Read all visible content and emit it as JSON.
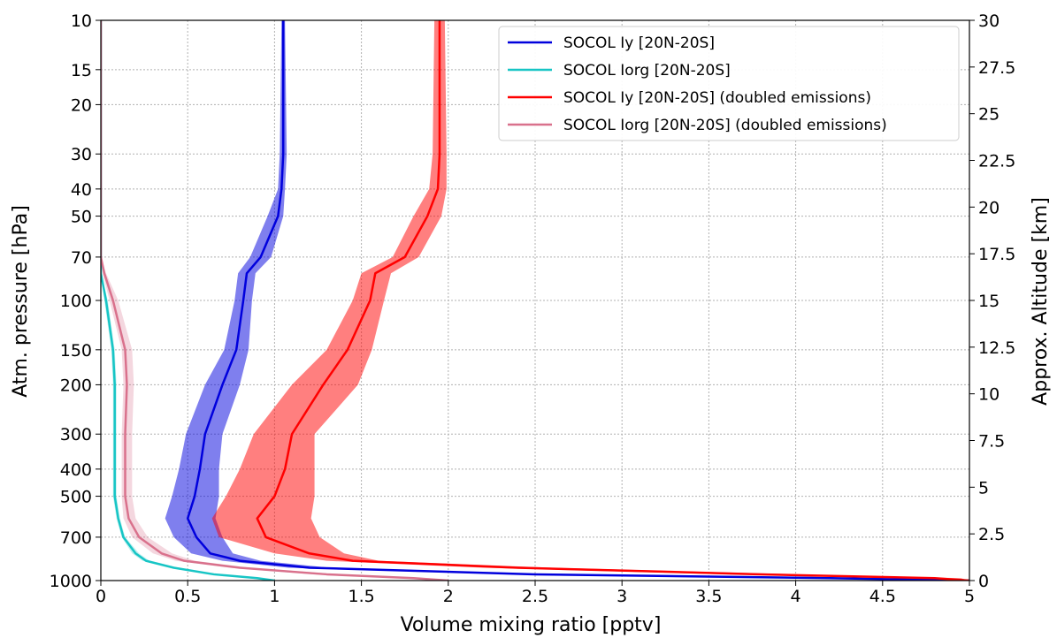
{
  "chart_data": {
    "type": "line",
    "title": "",
    "xlabel": "Volume mixing ratio [pptv]",
    "ylabel": "Atm. pressure [hPa]",
    "y2label": "Approx. Altitude [km]",
    "xlim": [
      0,
      5
    ],
    "ylim": [
      1000,
      10
    ],
    "y_scale": "log",
    "y_inverted": true,
    "grid": true,
    "legend_position": "top-right",
    "x_ticks": [
      {
        "value": 0,
        "label": "0"
      },
      {
        "value": 0.5,
        "label": "0.5"
      },
      {
        "value": 1,
        "label": "1"
      },
      {
        "value": 1.5,
        "label": "1.5"
      },
      {
        "value": 2,
        "label": "2"
      },
      {
        "value": 2.5,
        "label": "2.5"
      },
      {
        "value": 3,
        "label": "3"
      },
      {
        "value": 3.5,
        "label": "3.5"
      },
      {
        "value": 4,
        "label": "4"
      },
      {
        "value": 4.5,
        "label": "4.5"
      },
      {
        "value": 5,
        "label": "5"
      }
    ],
    "y_ticks": [
      {
        "value": 10,
        "label": "10"
      },
      {
        "value": 15,
        "label": "15"
      },
      {
        "value": 20,
        "label": "20"
      },
      {
        "value": 30,
        "label": "30"
      },
      {
        "value": 40,
        "label": "40"
      },
      {
        "value": 50,
        "label": "50"
      },
      {
        "value": 70,
        "label": "70"
      },
      {
        "value": 100,
        "label": "100"
      },
      {
        "value": 150,
        "label": "150"
      },
      {
        "value": 200,
        "label": "200"
      },
      {
        "value": 300,
        "label": "300"
      },
      {
        "value": 400,
        "label": "400"
      },
      {
        "value": 500,
        "label": "500"
      },
      {
        "value": 700,
        "label": "700"
      },
      {
        "value": 1000,
        "label": "1000"
      }
    ],
    "y2_ticks": [
      {
        "value": 0,
        "label": "0"
      },
      {
        "value": 2.5,
        "label": "2.5"
      },
      {
        "value": 5,
        "label": "5"
      },
      {
        "value": 7.5,
        "label": "7.5"
      },
      {
        "value": 10,
        "label": "10"
      },
      {
        "value": 12.5,
        "label": "12.5"
      },
      {
        "value": 15,
        "label": "15"
      },
      {
        "value": 17.5,
        "label": "17.5"
      },
      {
        "value": 20,
        "label": "20"
      },
      {
        "value": 22.5,
        "label": "22.5"
      },
      {
        "value": 25,
        "label": "25"
      },
      {
        "value": 27.5,
        "label": "27.5"
      },
      {
        "value": 30,
        "label": "30"
      }
    ],
    "pressure": [
      10,
      30,
      40,
      50,
      70,
      80,
      100,
      150,
      200,
      300,
      400,
      500,
      600,
      700,
      800,
      850,
      900,
      950,
      980,
      1000
    ],
    "series": [
      {
        "name": "SOCOL Iy [20N-20S]",
        "color": "#0000dd",
        "values": [
          1.05,
          1.05,
          1.04,
          1.02,
          0.92,
          0.84,
          0.82,
          0.78,
          0.7,
          0.6,
          0.57,
          0.54,
          0.5,
          0.55,
          0.63,
          0.8,
          1.2,
          2.5,
          4.2,
          5.0
        ],
        "lower": [
          1.04,
          1.03,
          1.02,
          0.96,
          0.86,
          0.79,
          0.77,
          0.71,
          0.6,
          0.49,
          0.45,
          0.41,
          0.37,
          0.42,
          0.52,
          0.7,
          1.08,
          2.35,
          4.05,
          5.0
        ],
        "upper": [
          1.06,
          1.07,
          1.06,
          1.05,
          0.98,
          0.89,
          0.87,
          0.85,
          0.8,
          0.7,
          0.68,
          0.68,
          0.66,
          0.7,
          0.76,
          0.92,
          1.32,
          2.65,
          4.35,
          5.0
        ]
      },
      {
        "name": "SOCOL Iorg [20N-20S]",
        "color": "#17c5c5",
        "values": [
          0.0,
          0.0,
          0.0,
          0.0,
          0.0,
          0.0,
          0.03,
          0.07,
          0.08,
          0.08,
          0.08,
          0.08,
          0.1,
          0.13,
          0.2,
          0.26,
          0.42,
          0.65,
          0.9,
          1.0
        ],
        "lower": [
          0.0,
          0.0,
          0.0,
          0.0,
          0.0,
          0.0,
          0.02,
          0.06,
          0.07,
          0.07,
          0.07,
          0.07,
          0.09,
          0.12,
          0.18,
          0.24,
          0.4,
          0.62,
          0.87,
          0.98
        ],
        "upper": [
          0.0,
          0.0,
          0.0,
          0.0,
          0.0,
          0.0,
          0.04,
          0.08,
          0.09,
          0.09,
          0.09,
          0.09,
          0.11,
          0.14,
          0.22,
          0.28,
          0.44,
          0.68,
          0.93,
          1.02
        ]
      },
      {
        "name": "SOCOL Iy [20N-20S] (doubled emissions)",
        "color": "#ff0000",
        "values": [
          1.95,
          1.95,
          1.94,
          1.88,
          1.75,
          1.58,
          1.55,
          1.42,
          1.28,
          1.1,
          1.06,
          1.0,
          0.9,
          0.95,
          1.2,
          1.45,
          2.4,
          3.8,
          4.8,
          5.0
        ],
        "lower": [
          1.92,
          1.91,
          1.89,
          1.8,
          1.68,
          1.5,
          1.45,
          1.3,
          1.1,
          0.88,
          0.8,
          0.72,
          0.64,
          0.68,
          1.0,
          1.3,
          2.2,
          3.6,
          4.65,
          5.0
        ],
        "upper": [
          1.98,
          1.99,
          1.99,
          1.96,
          1.83,
          1.67,
          1.63,
          1.56,
          1.48,
          1.23,
          1.23,
          1.23,
          1.21,
          1.26,
          1.4,
          1.6,
          2.6,
          4.0,
          4.95,
          5.0
        ]
      },
      {
        "name": "SOCOL Iorg [20N-20S] (doubled emissions)",
        "color": "#d9718c",
        "values": [
          0.0,
          0.0,
          0.0,
          0.0,
          0.0,
          0.02,
          0.07,
          0.14,
          0.15,
          0.14,
          0.14,
          0.14,
          0.16,
          0.22,
          0.35,
          0.48,
          0.8,
          1.3,
          1.8,
          2.0
        ],
        "lower": [
          0.0,
          0.0,
          0.0,
          0.0,
          0.0,
          0.01,
          0.05,
          0.12,
          0.13,
          0.12,
          0.12,
          0.12,
          0.13,
          0.18,
          0.3,
          0.43,
          0.74,
          1.22,
          1.72,
          1.95
        ],
        "upper": [
          0.0,
          0.0,
          0.0,
          0.0,
          0.0,
          0.03,
          0.1,
          0.18,
          0.19,
          0.18,
          0.18,
          0.18,
          0.2,
          0.27,
          0.41,
          0.54,
          0.86,
          1.38,
          1.88,
          2.05
        ]
      }
    ]
  }
}
